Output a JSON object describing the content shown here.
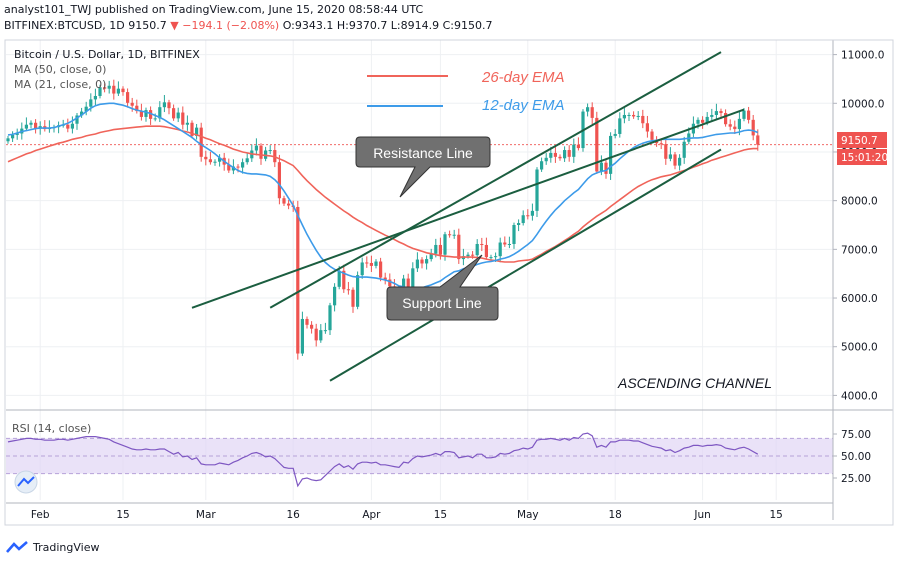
{
  "header": {
    "line1": "analyst101_TWJ published on TradingView.com, June 15, 2020 08:58:44 UTC",
    "symbol": "BITFINEX:BTCUSD, 1D",
    "last": "9150.7",
    "change": "▼ −194.1 (−2.08%)",
    "ohlc": "O:9343.1 H:9370.7 L:8914.9 C:9150.7"
  },
  "legend": {
    "title": "Bitcoin / U.S. Dollar, 1D, BITFINEX",
    "ma50": "MA (50, close, 0)",
    "ma21": "MA (21, close, 0)"
  },
  "annotations": {
    "ema26": "26-day EMA",
    "ema12": "12-day EMA",
    "resistance": "Resistance Line",
    "support": "Support Line",
    "channel": "ASCENDING CHANNEL"
  },
  "price_label": "9150.7",
  "countdown": "15:01:20",
  "brand": "TradingView",
  "colors": {
    "up": "#26a69a",
    "down": "#ef5350",
    "ema26": "#f0645a",
    "ema12": "#3d9be9",
    "rsi": "#7e57c2",
    "rsi_band": "#e1d5f5",
    "channel": "#1b5e40"
  },
  "chart_data": {
    "type": "candlestick",
    "title": "Bitcoin / U.S. Dollar, 1D, BITFINEX",
    "ylim": [
      3700,
      11300
    ],
    "y_ticks": [
      "4000.0",
      "5000.0",
      "6000.0",
      "7000.0",
      "8000.0",
      "9000.0",
      "10000.0",
      "11000.0"
    ],
    "x_ticks": [
      "Feb",
      "15",
      "Mar",
      "16",
      "Apr",
      "15",
      "May",
      "18",
      "Jun",
      "15"
    ],
    "close": [
      9280,
      9350,
      9380,
      9480,
      9560,
      9600,
      9480,
      9530,
      9470,
      9500,
      9510,
      9550,
      9560,
      9480,
      9580,
      9750,
      9830,
      9930,
      10080,
      10150,
      10330,
      10300,
      10360,
      10200,
      10300,
      10230,
      10010,
      9950,
      9840,
      9720,
      9860,
      9680,
      9690,
      9920,
      10020,
      9900,
      9690,
      9810,
      9560,
      9600,
      9330,
      9500,
      8900,
      8850,
      8790,
      8800,
      8880,
      8740,
      8620,
      8700,
      8680,
      8790,
      8870,
      9030,
      9130,
      8860,
      9030,
      9040,
      8790,
      8050,
      7940,
      7900,
      7870,
      4860,
      5570,
      5450,
      5370,
      5130,
      5340,
      5340,
      5850,
      6230,
      6560,
      6180,
      6170,
      5820,
      6470,
      6730,
      6720,
      6660,
      6750,
      6420,
      6380,
      6240,
      6000,
      5910,
      6400,
      6160,
      6610,
      6790,
      6710,
      6800,
      6910,
      7090,
      6890,
      7310,
      7290,
      7300,
      6800,
      6860,
      6890,
      6880,
      7110,
      7090,
      6840,
      6840,
      6860,
      7140,
      7100,
      7110,
      7500,
      7540,
      7700,
      7690,
      7790,
      8640,
      8810,
      8880,
      8980,
      8900,
      8870,
      9040,
      8900,
      9150,
      9080,
      9830,
      9920,
      9700,
      8600,
      8780,
      8550,
      9330,
      9370,
      9690,
      9760,
      9760,
      9730,
      9740,
      9590,
      9420,
      9250,
      9180,
      9160,
      8860,
      8950,
      8720,
      8880,
      9210,
      9380,
      9580,
      9660,
      9600,
      9720,
      9760,
      9840,
      9800,
      9570,
      9520,
      9470,
      9680,
      9850,
      9660,
      9340,
      9150
    ],
    "ema12": [
      9350,
      9360,
      9390,
      9420,
      9440,
      9460,
      9480,
      9490,
      9490,
      9490,
      9500,
      9530,
      9560,
      9590,
      9640,
      9700,
      9760,
      9830,
      9900,
      9950,
      9980,
      9990,
      10000,
      10000,
      9980,
      9960,
      9930,
      9890,
      9860,
      9840,
      9820,
      9790,
      9750,
      9710,
      9660,
      9600,
      9540,
      9480,
      9420,
      9360,
      9300,
      9220,
      9150,
      9090,
      9030,
      8960,
      8880,
      8810,
      8740,
      8680,
      8620,
      8580,
      8560,
      8550,
      8550,
      8540,
      8530,
      8500,
      8430,
      8330,
      8200,
      8050,
      7900,
      7700,
      7500,
      7310,
      7140,
      6980,
      6840,
      6730,
      6650,
      6590,
      6550,
      6510,
      6470,
      6440,
      6430,
      6430,
      6430,
      6420,
      6410,
      6390,
      6370,
      6340,
      6300,
      6250,
      6230,
      6200,
      6190,
      6200,
      6210,
      6240,
      6270,
      6310,
      6350,
      6420,
      6480,
      6540,
      6560,
      6600,
      6630,
      6650,
      6690,
      6720,
      6740,
      6750,
      6770,
      6800,
      6820,
      6850,
      6900,
      6960,
      7030,
      7100,
      7180,
      7310,
      7450,
      7580,
      7700,
      7810,
      7900,
      8000,
      8080,
      8160,
      8230,
      8340,
      8450,
      8530,
      8570,
      8600,
      8620,
      8700,
      8770,
      8860,
      8940,
      9020,
      9090,
      9140,
      9180,
      9210,
      9230,
      9240,
      9260,
      9260,
      9260,
      9260,
      9260,
      9270,
      9280,
      9290,
      9290,
      9300,
      9320,
      9340,
      9360,
      9370,
      9380,
      9390,
      9390,
      9410,
      9440,
      9450,
      9440,
      9400
    ],
    "ema26": [
      8800,
      8840,
      8880,
      8920,
      8960,
      8990,
      9030,
      9060,
      9090,
      9120,
      9150,
      9180,
      9200,
      9230,
      9260,
      9280,
      9300,
      9330,
      9350,
      9370,
      9400,
      9420,
      9440,
      9460,
      9470,
      9480,
      9490,
      9500,
      9510,
      9520,
      9530,
      9530,
      9530,
      9530,
      9520,
      9500,
      9480,
      9460,
      9430,
      9410,
      9380,
      9350,
      9320,
      9280,
      9250,
      9210,
      9170,
      9140,
      9100,
      9060,
      9030,
      9000,
      8980,
      8960,
      8950,
      8940,
      8930,
      8920,
      8900,
      8860,
      8820,
      8770,
      8720,
      8620,
      8510,
      8410,
      8320,
      8230,
      8150,
      8070,
      8000,
      7930,
      7860,
      7790,
      7730,
      7660,
      7600,
      7550,
      7490,
      7440,
      7390,
      7340,
      7290,
      7250,
      7200,
      7150,
      7110,
      7060,
      7020,
      6990,
      6960,
      6930,
      6910,
      6890,
      6870,
      6860,
      6850,
      6840,
      6840,
      6840,
      6840,
      6840,
      6830,
      6820,
      6800,
      6780,
      6770,
      6750,
      6740,
      6740,
      6740,
      6760,
      6770,
      6780,
      6800,
      6850,
      6900,
      6960,
      7010,
      7060,
      7120,
      7180,
      7240,
      7310,
      7370,
      7460,
      7540,
      7610,
      7680,
      7740,
      7800,
      7880,
      7950,
      8020,
      8090,
      8160,
      8230,
      8290,
      8340,
      8390,
      8430,
      8460,
      8490,
      8510,
      8530,
      8560,
      8590,
      8620,
      8650,
      8690,
      8720,
      8760,
      8790,
      8830,
      8860,
      8890,
      8920,
      8950,
      8980,
      9010,
      9040,
      9060,
      9070,
      9070
    ],
    "rsi": [
      66,
      67,
      68,
      69,
      70,
      70,
      69,
      69,
      68,
      68,
      68,
      69,
      69,
      68,
      69,
      70,
      71,
      72,
      72,
      72,
      71,
      70,
      69,
      66,
      64,
      62,
      60,
      58,
      57,
      57,
      58,
      57,
      57,
      58,
      58,
      55,
      52,
      54,
      49,
      50,
      46,
      48,
      41,
      40,
      40,
      40,
      42,
      41,
      40,
      43,
      45,
      48,
      50,
      53,
      54,
      52,
      49,
      50,
      47,
      42,
      37,
      36,
      36,
      16,
      24,
      25,
      23,
      22,
      23,
      28,
      33,
      38,
      41,
      37,
      39,
      35,
      41,
      43,
      43,
      42,
      43,
      40,
      40,
      39,
      38,
      37,
      43,
      42,
      47,
      50,
      49,
      50,
      51,
      53,
      51,
      55,
      55,
      54,
      48,
      49,
      50,
      48,
      52,
      52,
      48,
      48,
      49,
      53,
      52,
      53,
      56,
      57,
      59,
      58,
      60,
      68,
      69,
      69,
      70,
      69,
      68,
      70,
      68,
      71,
      70,
      75,
      76,
      73,
      60,
      62,
      60,
      66,
      66,
      68,
      68,
      68,
      67,
      67,
      65,
      63,
      61,
      60,
      59,
      56,
      57,
      54,
      56,
      59,
      60,
      62,
      62,
      61,
      62,
      62,
      63,
      62,
      59,
      58,
      57,
      59,
      60,
      58,
      55,
      52
    ],
    "rsi_ticks": [
      "25.00",
      "50.00",
      "75.00"
    ],
    "rsi_ylim": [
      0,
      100
    ],
    "rsi_band": [
      30,
      70
    ],
    "rsi_label": "RSI (14, close)",
    "channel_lines": {
      "upper": [
        [
          57,
          5800
        ],
        [
          155,
          11050
        ]
      ],
      "middle": [
        [
          40,
          5800
        ],
        [
          160,
          9870
        ]
      ],
      "lower": [
        [
          70,
          4300
        ],
        [
          155,
          9050
        ]
      ]
    }
  }
}
